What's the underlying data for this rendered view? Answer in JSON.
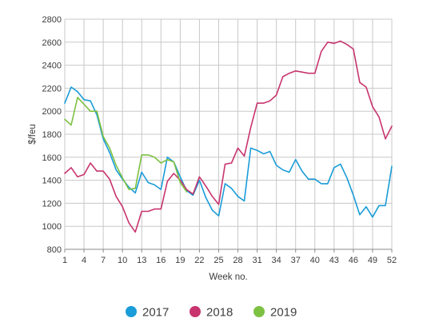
{
  "chart_data": {
    "type": "line",
    "xlabel": "Week no.",
    "ylabel": "$/feu",
    "ylim": [
      800,
      2800
    ],
    "yticks": [
      800,
      1000,
      1200,
      1400,
      1600,
      1800,
      2000,
      2200,
      2400,
      2600,
      2800
    ],
    "xlim": [
      1,
      52
    ],
    "xticks": [
      1,
      4,
      7,
      10,
      13,
      16,
      19,
      22,
      25,
      28,
      31,
      34,
      37,
      40,
      43,
      46,
      49,
      52
    ],
    "grid": true,
    "legend_position": "bottom",
    "series": [
      {
        "name": "2017",
        "color": "#1a9cd8",
        "x": [
          1,
          2,
          3,
          4,
          5,
          6,
          7,
          8,
          9,
          10,
          11,
          12,
          13,
          14,
          15,
          16,
          17,
          18,
          19,
          20,
          21,
          22,
          23,
          24,
          25,
          26,
          27,
          28,
          29,
          30,
          31,
          32,
          33,
          34,
          35,
          36,
          37,
          38,
          39,
          40,
          41,
          42,
          43,
          44,
          45,
          46,
          47,
          48,
          49,
          50,
          51,
          52
        ],
        "values": [
          2070,
          2210,
          2170,
          2100,
          2090,
          1970,
          1760,
          1640,
          1490,
          1410,
          1340,
          1290,
          1470,
          1380,
          1360,
          1320,
          1600,
          1560,
          1430,
          1310,
          1270,
          1400,
          1250,
          1140,
          1090,
          1370,
          1330,
          1260,
          1220,
          1680,
          1660,
          1630,
          1650,
          1530,
          1490,
          1470,
          1580,
          1480,
          1410,
          1410,
          1370,
          1370,
          1510,
          1540,
          1420,
          1270,
          1100,
          1170,
          1080,
          1180,
          1180,
          1520
        ]
      },
      {
        "name": "2018",
        "color": "#c8346e",
        "x": [
          1,
          2,
          3,
          4,
          5,
          6,
          7,
          8,
          9,
          10,
          11,
          12,
          13,
          14,
          15,
          16,
          17,
          18,
          19,
          20,
          21,
          22,
          23,
          24,
          25,
          26,
          27,
          28,
          29,
          30,
          31,
          32,
          33,
          34,
          35,
          36,
          37,
          38,
          39,
          40,
          41,
          42,
          43,
          44,
          45,
          46,
          47,
          48,
          49,
          50,
          51,
          52
        ],
        "values": [
          1460,
          1510,
          1430,
          1450,
          1550,
          1480,
          1480,
          1410,
          1260,
          1170,
          1030,
          950,
          1130,
          1130,
          1150,
          1150,
          1390,
          1460,
          1400,
          1320,
          1280,
          1430,
          1350,
          1260,
          1190,
          1540,
          1550,
          1680,
          1610,
          1860,
          2070,
          2070,
          2090,
          2140,
          2300,
          2330,
          2350,
          2340,
          2330,
          2330,
          2520,
          2600,
          2590,
          2610,
          2580,
          2540,
          2250,
          2210,
          2040,
          1950,
          1760,
          1870
        ]
      },
      {
        "name": "2019",
        "color": "#7dc142",
        "x": [
          1,
          2,
          3,
          4,
          5,
          6,
          7,
          8,
          9,
          10,
          11,
          12,
          13,
          14,
          15,
          16,
          17,
          18,
          19,
          20
        ],
        "values": [
          1930,
          1880,
          2120,
          2060,
          2000,
          2000,
          1780,
          1680,
          1530,
          1420,
          1320,
          1330,
          1620,
          1620,
          1600,
          1550,
          1580,
          1560,
          1380,
          1300
        ]
      }
    ]
  }
}
